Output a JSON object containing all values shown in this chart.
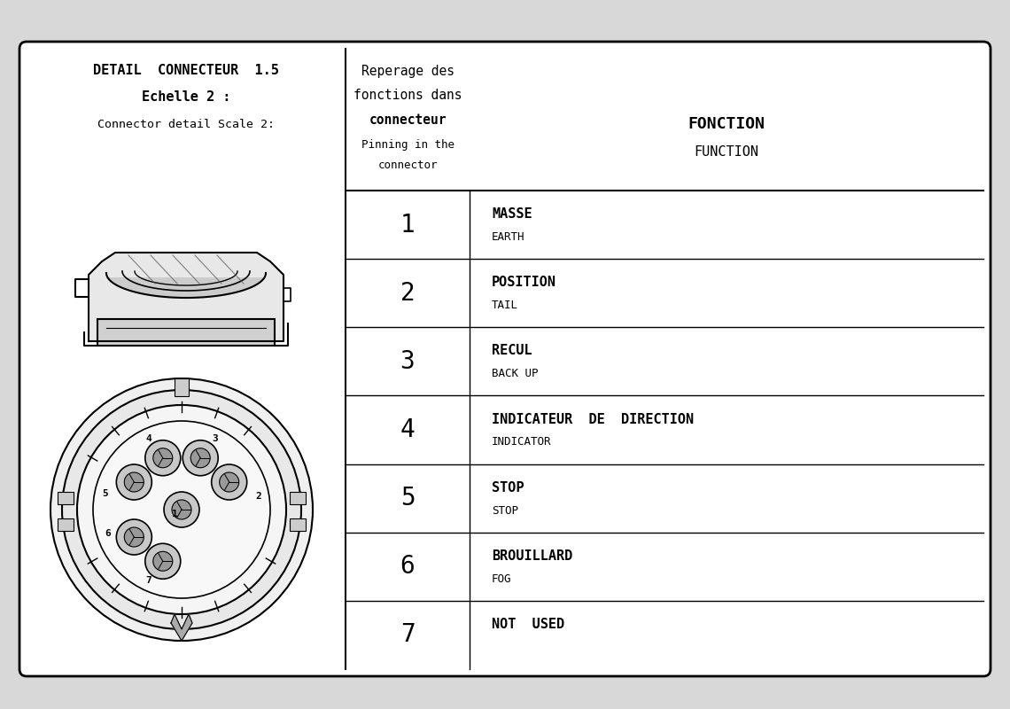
{
  "background_color": "#d8d8d8",
  "panel_bg": "#ffffff",
  "border_color": "#000000",
  "title_line1": "DETAIL  CONNECTEUR  1.5",
  "title_line2": "Echelle 2 :",
  "title_line3": "Connector detail Scale 2:",
  "header_col2_line1": "Reperage des",
  "header_col2_line2": "fonctions dans",
  "header_col2_line3": "connecteur",
  "header_col2_line4": "Pinning in the",
  "header_col2_line5": "connector",
  "header_col3_line1": "FONCTION",
  "header_col3_line2": "FUNCTION",
  "pins": [
    {
      "num": "1",
      "french": "MASSE",
      "english": "EARTH"
    },
    {
      "num": "2",
      "french": "POSITION",
      "english": "TAIL"
    },
    {
      "num": "3",
      "french": "RECUL",
      "english": "BACK UP"
    },
    {
      "num": "4",
      "french": "INDICATEUR  DE  DIRECTION",
      "english": "INDICATOR"
    },
    {
      "num": "5",
      "french": "STOP",
      "english": "STOP"
    },
    {
      "num": "6",
      "french": "BROUILLARD",
      "english": "FOG"
    },
    {
      "num": "7",
      "french": "NOT  USED",
      "english": ""
    }
  ]
}
